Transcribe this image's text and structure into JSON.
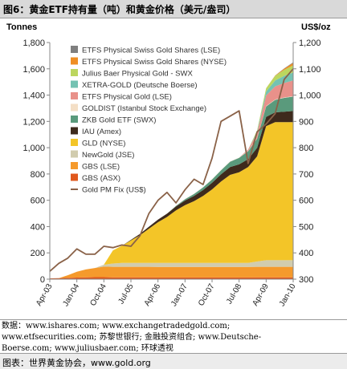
{
  "figure_title": "图6：黄金ETF持有量（吨）和黄金价格（美元/盎司）",
  "notes": [
    "数据：www.ishares.com; www.exchangetradedgold.com;",
    "www.etfsecurities.com; 苏黎世银行; 金融投资组合; www.Deutsche-",
    "Boerse.com; www.juliusbaer.com; 环球透视"
  ],
  "source_text": "图表：世界黄金协会，www.gold.org",
  "chart_data": {
    "type": "area",
    "ylabel_left": "Tonnes",
    "ylabel_right": "US$/oz",
    "ylim_left": [
      0,
      1800
    ],
    "ylim_right": [
      300,
      1200
    ],
    "yticks_left": [
      "0",
      "200",
      "400",
      "600",
      "800",
      "1,000",
      "1,200",
      "1,400",
      "1,600",
      "1,800"
    ],
    "yticks_right": [
      "300",
      "400",
      "500",
      "600",
      "700",
      "800",
      "900",
      "1,000",
      "1,100",
      "1,200"
    ],
    "xticks": [
      "Apr-03",
      "Jan-04",
      "Oct-04",
      "Jul-05",
      "Apr-06",
      "Jan-07",
      "Oct-07",
      "Jul-08",
      "Apr-09",
      "Jan-10"
    ],
    "grid": false,
    "legend_position": "top-left",
    "x": [
      "Apr-03",
      "Jul-03",
      "Oct-03",
      "Jan-04",
      "Apr-04",
      "Jul-04",
      "Oct-04",
      "Jan-05",
      "Apr-05",
      "Jul-05",
      "Oct-05",
      "Jan-06",
      "Apr-06",
      "Jul-06",
      "Oct-06",
      "Jan-07",
      "Apr-07",
      "Jul-07",
      "Oct-07",
      "Jan-08",
      "Apr-08",
      "Jul-08",
      "Oct-08",
      "Jan-09",
      "Apr-09",
      "Jul-09",
      "Oct-09",
      "Jan-10"
    ],
    "stack_series": [
      {
        "name": "GBS (ASX)",
        "color": "#e0581d",
        "values": [
          6,
          8,
          10,
          12,
          14,
          15,
          15,
          14,
          14,
          14,
          14,
          14,
          13,
          13,
          13,
          13,
          13,
          13,
          13,
          13,
          13,
          13,
          13,
          14,
          14,
          14,
          14,
          14
        ]
      },
      {
        "name": "GBS (LSE)",
        "color": "#f59a2c",
        "values": [
          0,
          0,
          20,
          45,
          60,
          70,
          80,
          80,
          80,
          80,
          80,
          80,
          80,
          80,
          80,
          80,
          80,
          80,
          80,
          80,
          80,
          80,
          80,
          80,
          80,
          80,
          80,
          80
        ]
      },
      {
        "name": "NewGold (JSE)",
        "color": "#d1ccae",
        "values": [
          0,
          0,
          0,
          0,
          0,
          0,
          15,
          25,
          30,
          30,
          30,
          30,
          30,
          30,
          30,
          30,
          30,
          30,
          30,
          30,
          30,
          30,
          30,
          40,
          50,
          50,
          50,
          50
        ]
      },
      {
        "name": "GLD (NYSE)",
        "color": "#f3c528",
        "values": [
          0,
          0,
          0,
          0,
          0,
          0,
          0,
          100,
          130,
          170,
          210,
          260,
          310,
          350,
          400,
          440,
          470,
          510,
          560,
          620,
          670,
          690,
          730,
          800,
          1020,
          1050,
          1050,
          1050
        ]
      },
      {
        "name": "IAU (Amex)",
        "color": "#3e2a1c",
        "values": [
          0,
          0,
          0,
          0,
          0,
          0,
          0,
          0,
          0,
          5,
          10,
          15,
          20,
          25,
          30,
          35,
          40,
          45,
          50,
          55,
          60,
          60,
          60,
          65,
          70,
          75,
          80,
          85
        ]
      },
      {
        "name": "ZKB Gold ETF (SWX)",
        "color": "#5a9a7c",
        "values": [
          0,
          0,
          0,
          0,
          0,
          0,
          0,
          0,
          0,
          0,
          0,
          0,
          0,
          0,
          5,
          10,
          15,
          20,
          25,
          30,
          40,
          50,
          60,
          70,
          80,
          95,
          105,
          110
        ]
      },
      {
        "name": "GOLDIST (Istanbul Stock Exchange)",
        "color": "#f4dfc6",
        "values": [
          0,
          0,
          0,
          0,
          0,
          0,
          0,
          0,
          0,
          0,
          0,
          0,
          0,
          0,
          1,
          2,
          2,
          2,
          2,
          2,
          2,
          2,
          3,
          3,
          3,
          3,
          3,
          3
        ]
      },
      {
        "name": "ETFS Physical Gold (LSE)",
        "color": "#e8918a",
        "values": [
          0,
          0,
          0,
          0,
          0,
          0,
          0,
          0,
          0,
          0,
          0,
          0,
          0,
          0,
          0,
          0,
          0,
          0,
          0,
          0,
          0,
          0,
          10,
          40,
          80,
          100,
          110,
          120
        ]
      },
      {
        "name": "XETRA-GOLD (Deutsche Boerse)",
        "color": "#74c2b2",
        "values": [
          0,
          0,
          0,
          0,
          0,
          0,
          0,
          0,
          0,
          0,
          0,
          0,
          0,
          0,
          0,
          0,
          0,
          0,
          0,
          0,
          0,
          0,
          0,
          10,
          30,
          45,
          55,
          60
        ]
      },
      {
        "name": "Julius Baer Physical Gold - SWX",
        "color": "#bcd65f",
        "values": [
          0,
          0,
          0,
          0,
          0,
          0,
          0,
          0,
          0,
          0,
          0,
          0,
          0,
          0,
          0,
          0,
          0,
          0,
          0,
          0,
          0,
          0,
          0,
          10,
          25,
          35,
          45,
          55
        ]
      },
      {
        "name": "ETFS Physical Swiss Gold Shares (NYSE)",
        "color": "#ef8e23",
        "values": [
          0,
          0,
          0,
          0,
          0,
          0,
          0,
          0,
          0,
          0,
          0,
          0,
          0,
          0,
          0,
          0,
          0,
          0,
          0,
          0,
          0,
          0,
          0,
          0,
          0,
          2,
          8,
          18
        ]
      },
      {
        "name": "ETFS Physical Swiss Gold Shares (LSE)",
        "color": "#7f7f7f",
        "values": [
          0,
          0,
          0,
          0,
          0,
          0,
          0,
          0,
          0,
          0,
          0,
          0,
          0,
          0,
          0,
          0,
          0,
          0,
          0,
          0,
          0,
          0,
          0,
          0,
          0,
          1,
          3,
          5
        ]
      }
    ],
    "price_series": {
      "name": "Gold PM Fix (US$)",
      "color": "#8a6248",
      "axis": "right",
      "values": [
        330,
        360,
        380,
        415,
        395,
        395,
        425,
        420,
        430,
        425,
        465,
        550,
        600,
        630,
        590,
        640,
        680,
        660,
        760,
        900,
        920,
        940,
        740,
        860,
        890,
        930,
        1060,
        1100
      ]
    }
  }
}
